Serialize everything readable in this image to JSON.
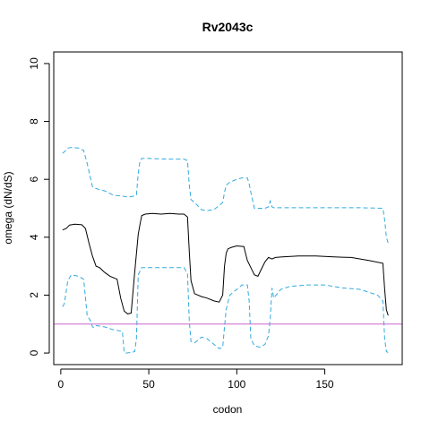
{
  "chart_data": {
    "type": "line",
    "title": "Rv2043c",
    "xlabel": "codon",
    "ylabel": "omega (dN/dS)",
    "xlim": [
      -4,
      194
    ],
    "ylim": [
      -0.4,
      10.4
    ],
    "x_ticks": [
      0,
      50,
      100,
      150
    ],
    "y_ticks": [
      0,
      2,
      4,
      6,
      8,
      10
    ],
    "grid": false,
    "legend": "none",
    "hline": {
      "y": 1,
      "color": "#cc66cc"
    },
    "series": [
      {
        "style": "solid",
        "color": "#000000",
        "x": [
          1,
          3,
          5,
          8,
          12,
          14,
          16,
          18,
          20,
          22,
          25,
          28,
          32,
          34,
          36,
          38,
          40,
          42,
          44,
          45,
          46,
          48,
          52,
          57,
          62,
          67,
          70,
          72,
          73,
          74,
          76,
          80,
          83,
          87,
          90,
          92,
          93,
          94,
          95,
          97,
          100,
          104,
          106,
          108,
          110,
          112,
          114,
          116,
          118,
          120,
          122,
          126,
          135,
          145,
          155,
          165,
          175,
          183,
          184,
          185,
          186
        ],
        "y": [
          4.25,
          4.3,
          4.42,
          4.45,
          4.43,
          4.3,
          3.8,
          3.35,
          3.0,
          2.95,
          2.78,
          2.65,
          2.55,
          1.9,
          1.45,
          1.35,
          1.38,
          2.8,
          4.1,
          4.45,
          4.75,
          4.8,
          4.82,
          4.8,
          4.82,
          4.8,
          4.8,
          4.7,
          3.5,
          2.5,
          2.05,
          1.95,
          1.9,
          1.8,
          1.76,
          2.0,
          3.0,
          3.45,
          3.6,
          3.65,
          3.7,
          3.68,
          3.2,
          2.95,
          2.7,
          2.65,
          2.9,
          3.15,
          3.3,
          3.25,
          3.3,
          3.32,
          3.35,
          3.35,
          3.32,
          3.3,
          3.2,
          3.1,
          2.2,
          1.5,
          1.3
        ]
      },
      {
        "style": "dashed",
        "color": "#33aadd",
        "x": [
          1,
          2,
          4,
          6,
          10,
          13,
          15,
          17,
          18,
          19,
          20,
          25,
          30,
          35,
          37,
          40,
          43,
          44,
          45,
          46,
          50,
          60,
          70,
          72,
          73,
          74,
          76,
          80,
          83,
          87,
          90,
          92,
          93,
          94,
          96,
          100,
          103,
          106,
          107,
          108,
          110,
          113,
          116,
          118,
          119,
          120,
          121,
          130,
          150,
          170,
          183,
          184,
          185,
          186
        ],
        "y": [
          6.9,
          6.95,
          7.08,
          7.1,
          7.08,
          7.0,
          6.55,
          6.0,
          5.75,
          5.7,
          5.68,
          5.6,
          5.45,
          5.42,
          5.4,
          5.4,
          5.45,
          6.2,
          6.65,
          6.72,
          6.72,
          6.7,
          6.7,
          6.65,
          5.8,
          5.3,
          5.2,
          4.95,
          4.92,
          4.95,
          5.1,
          5.2,
          5.55,
          5.8,
          5.9,
          6.0,
          6.05,
          6.05,
          5.85,
          5.55,
          5.0,
          5.0,
          5.0,
          5.05,
          5.25,
          5.05,
          5.02,
          5.02,
          5.02,
          5.02,
          5.0,
          4.6,
          4.0,
          3.8
        ]
      },
      {
        "style": "dashed",
        "color": "#33aadd",
        "x": [
          1,
          2,
          4,
          6,
          10,
          13,
          15,
          17,
          18,
          19,
          20,
          25,
          30,
          35,
          36,
          37,
          40,
          42,
          43,
          44,
          46,
          50,
          60,
          70,
          72,
          73,
          74,
          76,
          80,
          83,
          87,
          90,
          92,
          93,
          94,
          96,
          100,
          103,
          106,
          107,
          108,
          110,
          113,
          116,
          118,
          119,
          120,
          121,
          125,
          130,
          140,
          150,
          160,
          170,
          180,
          183,
          184,
          185,
          186
        ],
        "y": [
          1.6,
          1.7,
          2.5,
          2.7,
          2.65,
          2.55,
          1.3,
          1.1,
          0.9,
          0.88,
          0.95,
          0.9,
          0.8,
          0.75,
          0.02,
          0.0,
          0.02,
          0.05,
          0.5,
          2.7,
          2.95,
          2.95,
          2.95,
          2.95,
          2.75,
          1.1,
          0.4,
          0.35,
          0.55,
          0.5,
          0.3,
          0.15,
          0.2,
          0.9,
          1.5,
          2.0,
          2.2,
          2.35,
          2.35,
          1.8,
          0.5,
          0.25,
          0.2,
          0.3,
          0.6,
          1.2,
          2.25,
          1.9,
          2.2,
          2.3,
          2.35,
          2.35,
          2.25,
          2.2,
          2.0,
          1.8,
          0.5,
          0.05,
          0.02
        ]
      }
    ]
  }
}
